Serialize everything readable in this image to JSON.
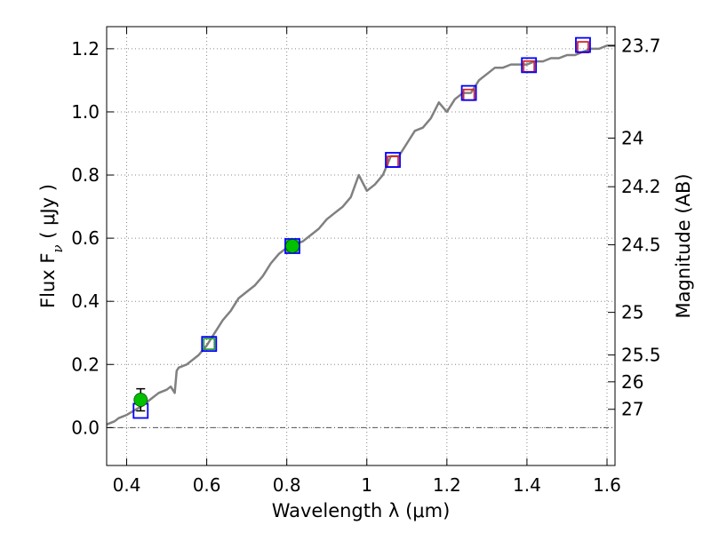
{
  "chart_data": {
    "type": "line",
    "xlabel": "Wavelength  λ (μm)",
    "ylabel": "Flux  F",
    "ylabel_subscript": "ν",
    "ylabel_units": " ( μJy )",
    "ylabel_right": "Magnitude (AB)",
    "xlim": [
      0.35,
      1.62
    ],
    "ylim": [
      -0.12,
      1.27
    ],
    "grid": true,
    "x_ticks": [
      0.4,
      0.6,
      0.8,
      1.0,
      1.2,
      1.4,
      1.6
    ],
    "x_tick_labels": [
      "0.4",
      "0.6",
      "0.8",
      "1",
      "1.2",
      "1.4",
      "1.6"
    ],
    "y_ticks": [
      0.0,
      0.2,
      0.4,
      0.6,
      0.8,
      1.0,
      1.2
    ],
    "y_tick_labels": [
      "0.0",
      "0.2",
      "0.4",
      "0.6",
      "0.8",
      "1.0",
      "1.2"
    ],
    "right_ticks": [
      {
        "label": "23.7",
        "flux": 1.209
      },
      {
        "label": "24",
        "flux": 0.917
      },
      {
        "label": "24.2",
        "flux": 0.763
      },
      {
        "label": "24.5",
        "flux": 0.579
      },
      {
        "label": "25",
        "flux": 0.365
      },
      {
        "label": "25.5",
        "flux": 0.23
      },
      {
        "label": "26",
        "flux": 0.145
      },
      {
        "label": "27",
        "flux": 0.058
      }
    ],
    "sed_model": {
      "color": "#808080",
      "x": [
        0.35,
        0.37,
        0.38,
        0.4,
        0.42,
        0.44,
        0.46,
        0.48,
        0.5,
        0.51,
        0.52,
        0.525,
        0.53,
        0.55,
        0.58,
        0.6,
        0.62,
        0.64,
        0.66,
        0.68,
        0.7,
        0.72,
        0.74,
        0.76,
        0.78,
        0.8,
        0.82,
        0.84,
        0.86,
        0.88,
        0.9,
        0.92,
        0.94,
        0.96,
        0.98,
        1.0,
        1.02,
        1.04,
        1.06,
        1.08,
        1.1,
        1.12,
        1.14,
        1.16,
        1.18,
        1.2,
        1.22,
        1.24,
        1.26,
        1.28,
        1.3,
        1.32,
        1.34,
        1.36,
        1.38,
        1.4,
        1.42,
        1.44,
        1.46,
        1.48,
        1.5,
        1.52,
        1.54,
        1.56,
        1.58,
        1.6,
        1.62
      ],
      "y": [
        0.01,
        0.02,
        0.03,
        0.04,
        0.055,
        0.07,
        0.09,
        0.11,
        0.12,
        0.13,
        0.11,
        0.18,
        0.19,
        0.2,
        0.23,
        0.26,
        0.3,
        0.34,
        0.37,
        0.41,
        0.43,
        0.45,
        0.48,
        0.52,
        0.55,
        0.57,
        0.58,
        0.59,
        0.61,
        0.63,
        0.66,
        0.68,
        0.7,
        0.73,
        0.8,
        0.75,
        0.77,
        0.8,
        0.86,
        0.86,
        0.9,
        0.94,
        0.95,
        0.98,
        1.03,
        1.0,
        1.04,
        1.06,
        1.06,
        1.1,
        1.12,
        1.14,
        1.14,
        1.15,
        1.15,
        1.15,
        1.16,
        1.16,
        1.17,
        1.17,
        1.18,
        1.18,
        1.19,
        1.2,
        1.2,
        1.21,
        1.21
      ]
    },
    "filters": [
      {
        "wavelength": 0.435,
        "observed": 0.053
      },
      {
        "wavelength": 0.606,
        "observed": 0.265
      },
      {
        "wavelength": 0.814,
        "observed": 0.575
      },
      {
        "wavelength": 1.065,
        "observed": 0.848
      },
      {
        "wavelength": 1.255,
        "observed": 1.06
      },
      {
        "wavelength": 1.405,
        "observed": 1.148
      },
      {
        "wavelength": 1.54,
        "observed": 1.212
      }
    ],
    "model_photometry": [
      {
        "wavelength": 0.606,
        "flux": 0.265,
        "color": "#2ca02c"
      },
      {
        "wavelength": 0.814,
        "flux": 0.575,
        "color": "#2ca02c"
      },
      {
        "wavelength": 1.065,
        "flux": 0.842,
        "color": "#d62728"
      },
      {
        "wavelength": 1.255,
        "flux": 1.054,
        "color": "#d62728"
      },
      {
        "wavelength": 1.405,
        "flux": 1.144,
        "color": "#d62728"
      },
      {
        "wavelength": 1.54,
        "flux": 1.205,
        "color": "#d62728"
      }
    ],
    "detections": [
      {
        "wavelength": 0.435,
        "flux": 0.088,
        "err": 0.035
      },
      {
        "wavelength": 0.814,
        "flux": 0.575,
        "err": 0.01
      }
    ],
    "colors": {
      "observed_box": "#0000ff",
      "detection": "#00c000",
      "errorbar": "#000000",
      "zero_line": "#555555",
      "grid": "#888888"
    }
  }
}
